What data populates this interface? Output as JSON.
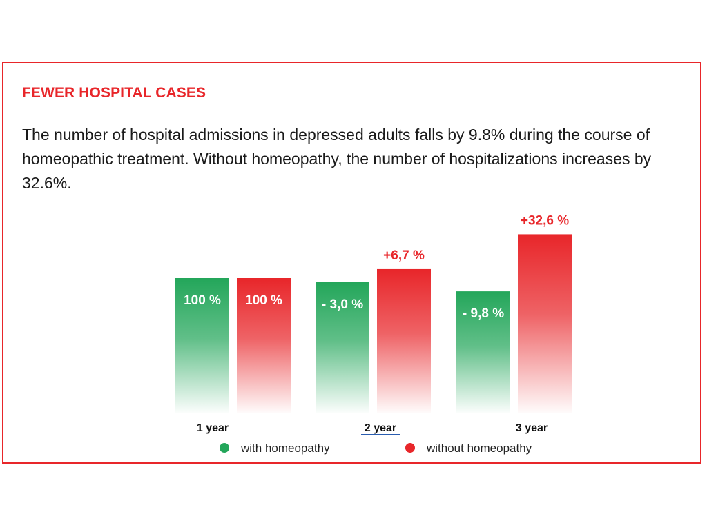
{
  "title": "FEWER HOSPITAL CASES",
  "description": "The number of hospital admissions in depressed adults falls by 9.8% during the course of homeopathic treatment. Without homeopathy, the number of hospitalizations increases by 32.6%.",
  "colors": {
    "accent": "#e8262a",
    "with_homeopathy": "#23a65a",
    "without_homeopathy": "#e8262a"
  },
  "chart_data": {
    "type": "bar",
    "categories": [
      "1 year",
      "2 year",
      "3 year"
    ],
    "series": [
      {
        "name": "with homeopathy",
        "values": [
          100,
          97.0,
          90.2
        ],
        "labels": [
          "100 %",
          "- 3,0 %",
          "- 9,8 %"
        ],
        "color": "#23a65a"
      },
      {
        "name": "without homeopathy",
        "values": [
          100,
          106.7,
          132.6
        ],
        "labels": [
          "100 %",
          "+6,7 %",
          "+32,6 %"
        ],
        "color": "#e8262a"
      }
    ],
    "title": "",
    "xlabel": "",
    "ylabel": "",
    "legend": "bottom",
    "grid": false
  }
}
